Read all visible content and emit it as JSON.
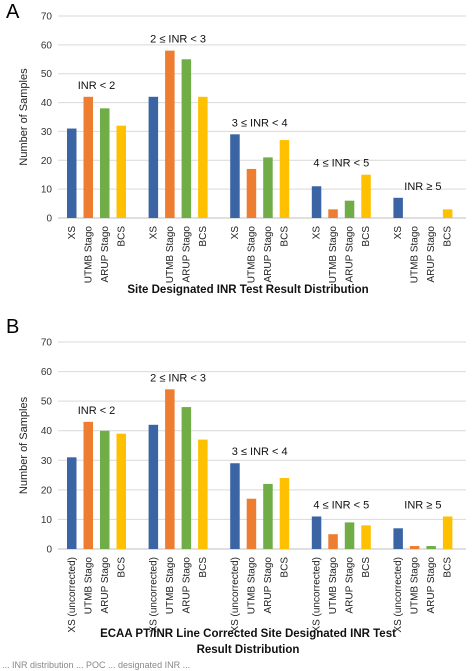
{
  "caption_fragment": "... INR distribution ... POC ... designated INR ... ",
  "chart_data": [
    {
      "type": "bar",
      "panel": "A",
      "title": "",
      "xlabel": "Site Designated INR Test Result Distribution",
      "ylabel": "Number of Samples",
      "ylim": [
        0,
        70
      ],
      "yticks": [
        0,
        10,
        20,
        30,
        40,
        50,
        60,
        70
      ],
      "grid": true,
      "colors": [
        "#3b64a5",
        "#ed7d31",
        "#70ad47",
        "#ffc000"
      ],
      "groups": [
        {
          "label": "INR < 2",
          "categories": [
            "XS",
            "UTMB Stago",
            "ARUP Stago",
            "BCS"
          ],
          "values": [
            31,
            42,
            38,
            32
          ]
        },
        {
          "label": "2 ≤ INR < 3",
          "categories": [
            "XS",
            "UTMB Stago",
            "ARUP Stago",
            "BCS"
          ],
          "values": [
            42,
            58,
            55,
            42
          ]
        },
        {
          "label": "3 ≤ INR < 4",
          "categories": [
            "XS",
            "UTMB Stago",
            "ARUP Stago",
            "BCS"
          ],
          "values": [
            29,
            17,
            21,
            27
          ]
        },
        {
          "label": "4 ≤ INR < 5",
          "categories": [
            "XS",
            "UTMB Stago",
            "ARUP Stago",
            "BCS"
          ],
          "values": [
            11,
            3,
            6,
            15
          ]
        },
        {
          "label": "INR ≥ 5",
          "categories": [
            "XS",
            "UTMB Stago",
            "ARUP Stago",
            "BCS"
          ],
          "values": [
            7,
            0,
            0,
            3
          ]
        }
      ]
    },
    {
      "type": "bar",
      "panel": "B",
      "title": "",
      "xlabel": "ECAA PT/INR Line Corrected Site Designated INR Test",
      "xlabel2": "Result Distribution",
      "ylabel": "Number of Samples",
      "ylim": [
        0,
        70
      ],
      "yticks": [
        0,
        10,
        20,
        30,
        40,
        50,
        60,
        70
      ],
      "grid": true,
      "colors": [
        "#3b64a5",
        "#ed7d31",
        "#70ad47",
        "#ffc000"
      ],
      "groups": [
        {
          "label": "INR < 2",
          "categories": [
            "XS (uncorrected)",
            "UTMB Stago",
            "ARUP Stago",
            "BCS"
          ],
          "values": [
            31,
            43,
            40,
            39
          ]
        },
        {
          "label": "2 ≤ INR < 3",
          "categories": [
            "XS (uncorrected)",
            "UTMB Stago",
            "ARUP Stago",
            "BCS"
          ],
          "values": [
            42,
            54,
            48,
            37
          ]
        },
        {
          "label": "3 ≤ INR < 4",
          "categories": [
            "XS (uncorrected)",
            "UTMB Stago",
            "ARUP Stago",
            "BCS"
          ],
          "values": [
            29,
            17,
            22,
            24
          ]
        },
        {
          "label": "4 ≤ INR < 5",
          "categories": [
            "XS (uncorrected)",
            "UTMB Stago",
            "ARUP Stago",
            "BCS"
          ],
          "values": [
            11,
            5,
            9,
            8
          ]
        },
        {
          "label": "INR ≥ 5",
          "categories": [
            "XS (uncorrected)",
            "UTMB Stago",
            "ARUP Stago",
            "BCS"
          ],
          "values": [
            7,
            1,
            1,
            11
          ]
        }
      ]
    }
  ]
}
